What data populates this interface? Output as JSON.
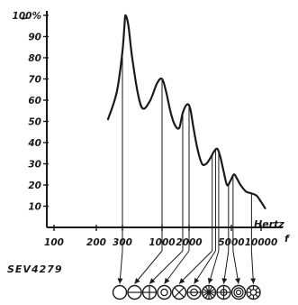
{
  "chart_data": {
    "type": "line",
    "x_scale": "log",
    "xlim": [
      100,
      20000
    ],
    "ylim": [
      0,
      100
    ],
    "y_ticks": [
      "10",
      "20",
      "30",
      "40",
      "50",
      "60",
      "70",
      "80",
      "90",
      "100%"
    ],
    "y_tick_values": [
      10,
      20,
      30,
      40,
      50,
      60,
      70,
      80,
      90,
      100
    ],
    "x_ticks": [
      "100",
      "200",
      "300",
      "1000",
      "2000",
      "5000",
      "10000"
    ],
    "x_tick_values": [
      100,
      200,
      300,
      1000,
      2000,
      5000,
      10000
    ],
    "xlabel": "Hertz",
    "xlabel_symbol": "f",
    "grid": false,
    "series": [
      {
        "x": [
          240,
          275,
          300,
          320,
          330,
          360,
          400,
          480,
          560,
          700,
          860,
          1000,
          1110,
          1250,
          1400,
          1560,
          1700,
          1900,
          2050,
          2200,
          2400,
          2650,
          2900,
          3200,
          3450,
          3700,
          3950,
          4200,
          4550,
          4900,
          5300,
          5700,
          6200,
          7000,
          8000,
          9000,
          10000,
          11000
        ],
        "y": [
          51,
          64,
          83,
          96,
          100,
          95,
          81,
          63,
          56,
          60,
          68,
          70,
          64,
          54,
          48,
          47,
          54,
          58,
          56,
          47,
          37,
          30,
          30,
          33,
          36,
          37,
          33,
          27,
          20,
          22,
          25,
          23,
          20,
          17,
          16,
          15,
          12,
          9
        ]
      }
    ],
    "markers": {
      "frequencies": [
        300,
        1000,
        1700,
        2000,
        3300,
        3550,
        3800,
        4700,
        5200,
        8000
      ],
      "symbols": [
        "plain-circle",
        "horizontal-bar-circle",
        "cross-circle",
        "ring-circle",
        "x-circle",
        "bar-in-circle",
        "asterisk-circle",
        "plus-circle",
        "double-ring-circle",
        "star-circle"
      ]
    },
    "reference": "SEV4279"
  }
}
